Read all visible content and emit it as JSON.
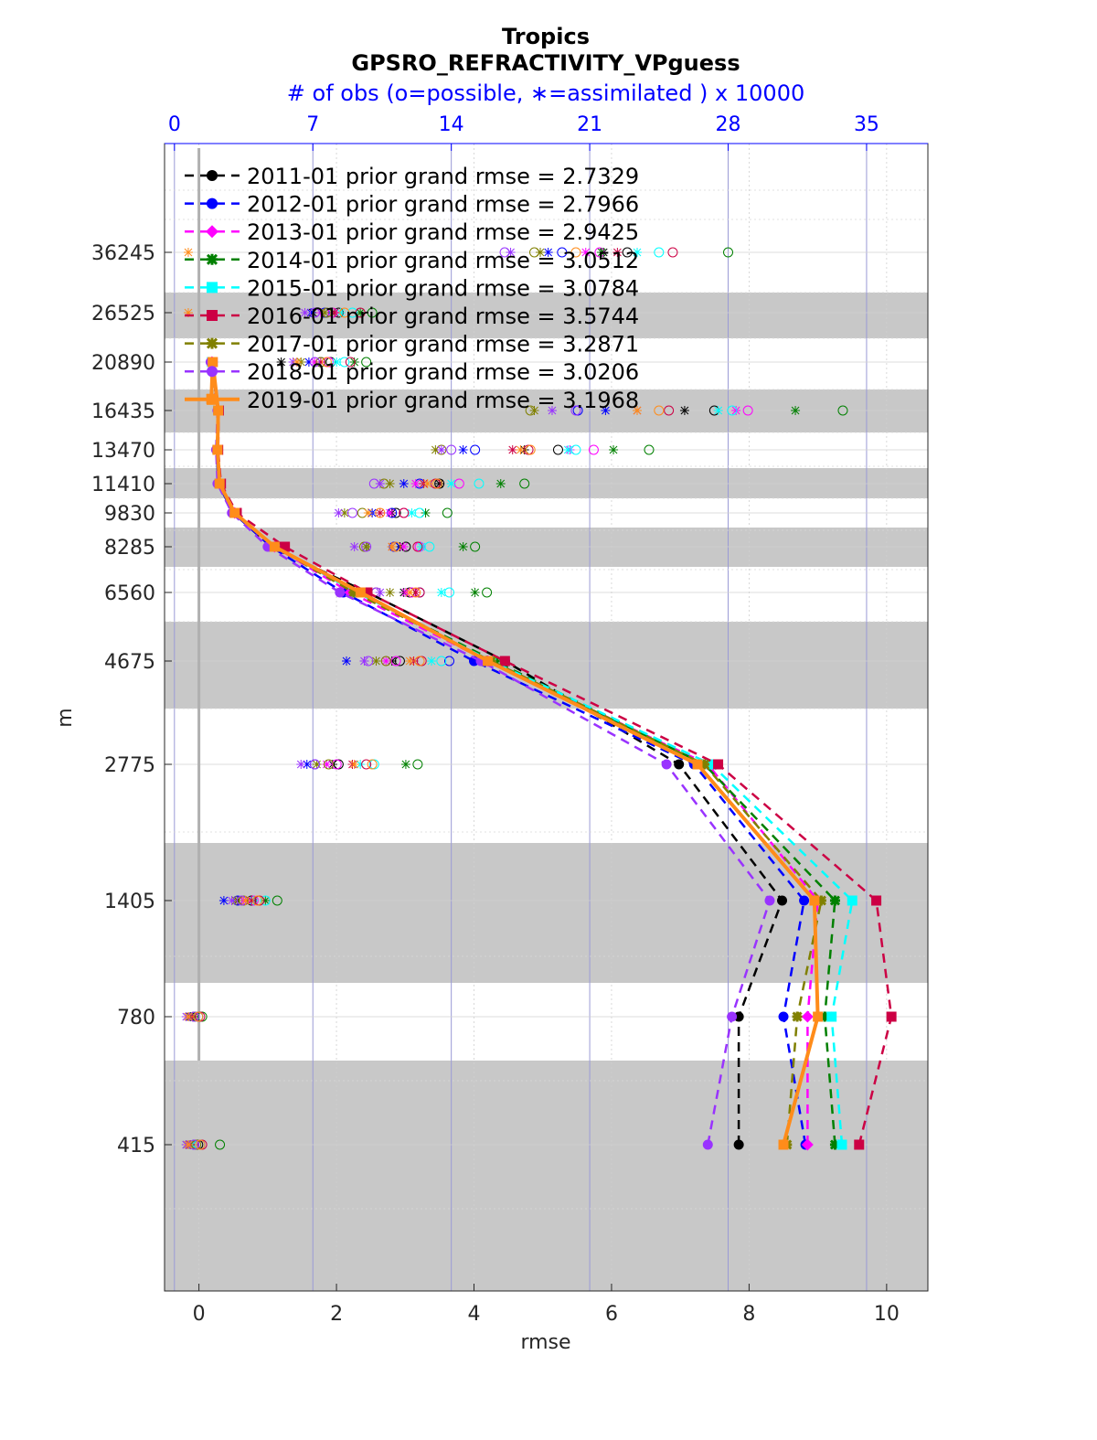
{
  "chart_data": {
    "type": "line",
    "title": "Tropics",
    "subtitle": "GPSRO_REFRACTIVITY_VPguess",
    "top_axis_label": "# of obs (o=possible, ∗=assimilated ) x 10000",
    "xlabel": "rmse",
    "ylabel": "m",
    "xlim": [
      -0.5,
      10.6
    ],
    "x_ticks": [
      0,
      2,
      4,
      6,
      8,
      10
    ],
    "top_xlim": [
      -0.5,
      38.1
    ],
    "top_ticks": [
      0,
      7,
      14,
      21,
      28,
      35
    ],
    "y_ticks": [
      415,
      780,
      1405,
      2775,
      4675,
      6560,
      8285,
      9830,
      11410,
      13470,
      16435,
      20890,
      26525,
      36245
    ],
    "y_tick_labels": [
      "415",
      "780",
      "1405",
      "2775",
      "4675",
      "6560",
      "8285",
      "9830",
      "11410",
      "13470",
      "16435",
      "20890",
      "26525",
      "36245"
    ],
    "grid": true,
    "legend_position": "top-left",
    "series": [
      {
        "name": "2011-01 prior grand rmse = 2.7329",
        "color": "#000000",
        "marker": "circle",
        "style": "dashed",
        "x": [
          7.85,
          7.85,
          8.48,
          6.98,
          4.45,
          2.45,
          1.05,
          0.5,
          0.28,
          0.26,
          0.28,
          0.18
        ],
        "y": [
          415,
          780,
          1405,
          2775,
          4675,
          6560,
          8285,
          9830,
          11410,
          13470,
          16435,
          20890
        ]
      },
      {
        "name": "2012-01 prior grand rmse = 2.7966",
        "color": "#0000ff",
        "marker": "circle",
        "style": "dashed",
        "x": [
          8.82,
          8.5,
          8.8,
          7.2,
          4.0,
          2.1,
          1.05,
          0.5,
          0.28,
          0.26,
          0.28,
          0.18
        ],
        "y": [
          415,
          780,
          1405,
          2775,
          4675,
          6560,
          8285,
          9830,
          11410,
          13470,
          16435,
          20890
        ]
      },
      {
        "name": "2013-01 prior grand rmse = 2.9425",
        "color": "#ff00ff",
        "marker": "diamond",
        "style": "dashed",
        "x": [
          8.85,
          8.85,
          9.0,
          7.4,
          4.2,
          2.2,
          1.1,
          0.52,
          0.3,
          0.27,
          0.28,
          0.19
        ],
        "y": [
          415,
          780,
          1405,
          2775,
          4675,
          6560,
          8285,
          9830,
          11410,
          13470,
          16435,
          20890
        ]
      },
      {
        "name": "2014-01 prior grand rmse = 3.0512",
        "color": "#008000",
        "marker": "star",
        "style": "dashed",
        "x": [
          9.25,
          9.1,
          9.25,
          7.35,
          4.3,
          2.3,
          1.1,
          0.52,
          0.3,
          0.27,
          0.28,
          0.19
        ],
        "y": [
          415,
          780,
          1405,
          2775,
          4675,
          6560,
          8285,
          9830,
          11410,
          13470,
          16435,
          20890
        ]
      },
      {
        "name": "2015-01 prior grand rmse = 3.0784",
        "color": "#00ffff",
        "marker": "square",
        "style": "dashed",
        "x": [
          9.35,
          9.2,
          9.5,
          7.45,
          4.25,
          2.3,
          1.1,
          0.52,
          0.3,
          0.27,
          0.28,
          0.19
        ],
        "y": [
          415,
          780,
          1405,
          2775,
          4675,
          6560,
          8285,
          9830,
          11410,
          13470,
          16435,
          20890
        ]
      },
      {
        "name": "2016-01 prior grand rmse = 3.5744",
        "color": "#cc0044",
        "marker": "square",
        "style": "dashed",
        "x": [
          9.6,
          10.07,
          9.85,
          7.55,
          4.45,
          2.45,
          1.25,
          0.55,
          0.32,
          0.28,
          0.29,
          0.2
        ],
        "y": [
          415,
          780,
          1405,
          2775,
          4675,
          6560,
          8285,
          9830,
          11410,
          13470,
          16435,
          20890
        ]
      },
      {
        "name": "2017-01 prior grand rmse = 3.2871",
        "color": "#808000",
        "marker": "star",
        "style": "dashed",
        "x": [
          8.55,
          8.7,
          9.05,
          7.35,
          4.25,
          2.25,
          1.1,
          0.52,
          0.3,
          0.27,
          0.28,
          0.19
        ],
        "y": [
          415,
          780,
          1405,
          2775,
          4675,
          6560,
          8285,
          9830,
          11410,
          13470,
          16435,
          20890
        ]
      },
      {
        "name": "2018-01 prior grand rmse = 3.0206",
        "color": "#9933ff",
        "marker": "circle",
        "style": "dashed",
        "x": [
          7.4,
          7.75,
          8.3,
          6.8,
          4.1,
          2.05,
          1.0,
          0.48,
          0.27,
          0.25,
          0.27,
          0.17
        ],
        "y": [
          415,
          780,
          1405,
          2775,
          4675,
          6560,
          8285,
          9830,
          11410,
          13470,
          16435,
          20890
        ]
      },
      {
        "name": "2019-01 prior grand rmse = 3.1968",
        "color": "#ff8c1a",
        "marker": "square",
        "style": "solid",
        "x": [
          8.5,
          9.0,
          8.95,
          7.25,
          4.2,
          2.35,
          1.1,
          0.52,
          0.3,
          0.27,
          0.28,
          0.2,
          0.18
        ],
        "y": [
          415,
          780,
          1405,
          2775,
          4675,
          6560,
          8285,
          9830,
          11410,
          13470,
          16435,
          20890,
          17500
        ]
      }
    ],
    "obs_counts": {
      "description_units": "x 10000",
      "levels": [
        36245,
        26525,
        20890,
        16435,
        13470,
        11410,
        9830,
        8285,
        6560,
        4675,
        2775,
        1405,
        780,
        415
      ],
      "possible": {
        "#000000": [
          22.9,
          8.3,
          7.9,
          27.3,
          19.4,
          13.4,
          11.2,
          11.7,
          11.9,
          11.4,
          8.3,
          3.9,
          1.2,
          1.2
        ],
        "#0000ff": [
          19.6,
          7.6,
          7.4,
          20.4,
          15.2,
          12.4,
          11.0,
          11.1,
          12.4,
          13.9,
          7.1,
          3.2,
          1.0,
          1.0
        ],
        "#ff00ff": [
          21.5,
          8.0,
          7.8,
          29.0,
          21.2,
          14.4,
          11.6,
          12.4,
          12.0,
          11.2,
          8.2,
          4.0,
          1.2,
          1.3
        ],
        "#008000": [
          28.0,
          10.0,
          9.7,
          33.8,
          24.0,
          17.7,
          13.8,
          15.2,
          15.8,
          15.6,
          12.3,
          5.2,
          1.4,
          2.3
        ],
        "#00ffff": [
          24.5,
          9.0,
          8.6,
          28.2,
          20.3,
          15.4,
          12.4,
          12.9,
          13.9,
          13.5,
          10.1,
          4.6,
          1.2,
          1.3
        ],
        "#cc0044": [
          25.2,
          9.4,
          8.9,
          25.0,
          17.9,
          13.2,
          11.6,
          12.3,
          12.4,
          12.5,
          9.7,
          4.3,
          1.3,
          1.4
        ],
        "#808000": [
          18.2,
          7.7,
          7.4,
          18.0,
          13.5,
          10.6,
          9.5,
          9.6,
          10.2,
          10.7,
          7.8,
          3.5,
          1.0,
          1.1
        ],
        "#9933ff": [
          16.7,
          7.1,
          7.1,
          20.3,
          14.0,
          10.1,
          9.0,
          9.7,
          10.2,
          9.8,
          7.1,
          3.4,
          1.0,
          1.0
        ],
        "#ff8c1a": [
          20.3,
          8.6,
          7.7,
          24.5,
          18.0,
          13.3,
          10.4,
          11.2,
          12.2,
          12.4,
          10.0,
          4.2,
          1.2,
          1.3
        ]
      },
      "assimilated": {
        "#000000": [
          21.7,
          7.0,
          5.4,
          25.8,
          17.7,
          13.4,
          11.0,
          11.4,
          11.6,
          11.0,
          8.0,
          3.2,
          0.8,
          0.9
        ],
        "#0000ff": [
          18.9,
          6.9,
          6.8,
          21.8,
          14.6,
          11.6,
          10.0,
          9.7,
          9.5,
          8.7,
          6.7,
          2.5,
          0.7,
          0.7
        ],
        "#ff00ff": [
          20.8,
          7.4,
          7.1,
          28.4,
          20.0,
          12.2,
          10.9,
          11.6,
          11.7,
          10.7,
          7.7,
          3.5,
          0.9,
          0.9
        ],
        "#008000": [
          21.6,
          9.4,
          9.1,
          31.4,
          22.2,
          16.5,
          12.7,
          14.6,
          15.2,
          15.2,
          11.7,
          4.6,
          1.0,
          0.9
        ],
        "#00ffff": [
          23.4,
          8.4,
          8.2,
          27.5,
          19.9,
          14.0,
          12.0,
          12.5,
          13.5,
          13.0,
          9.4,
          4.0,
          0.9,
          0.9
        ],
        "#cc0044": [
          22.4,
          8.1,
          7.4,
          23.4,
          17.1,
          12.6,
          10.4,
          11.0,
          12.2,
          12.1,
          9.0,
          3.9,
          0.9,
          0.8
        ],
        "#808000": [
          18.5,
          7.6,
          6.4,
          18.2,
          13.2,
          10.9,
          8.6,
          9.7,
          10.9,
          10.2,
          7.2,
          3.1,
          0.7,
          0.6
        ],
        "#9933ff": [
          17.0,
          6.6,
          6.0,
          19.1,
          13.5,
          10.4,
          8.3,
          9.1,
          10.4,
          9.6,
          6.4,
          2.9,
          0.6,
          0.6
        ],
        "#ff8c1a": [
          0.7,
          0.7,
          6.2,
          23.4,
          17.5,
          12.8,
          9.8,
          11.0,
          11.9,
          11.9,
          9.1,
          3.6,
          0.7,
          0.7
        ]
      }
    }
  }
}
